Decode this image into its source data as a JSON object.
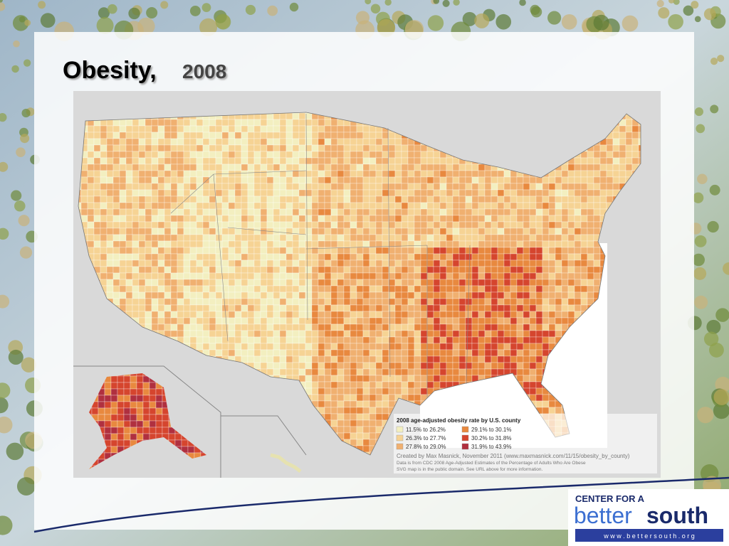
{
  "title": {
    "main": "Obesity,",
    "year": "2008"
  },
  "legend": {
    "title": "2008 age-adjusted obesity rate by U.S. county",
    "items": [
      {
        "label": "11.5% to 26.2%",
        "color": "#f3efc0"
      },
      {
        "label": "26.3% to 27.7%",
        "color": "#f6d394"
      },
      {
        "label": "27.8% to 29.0%",
        "color": "#f0b070"
      },
      {
        "label": "29.1% to 30.1%",
        "color": "#e8893f"
      },
      {
        "label": "30.2% to 31.8%",
        "color": "#d5452e"
      },
      {
        "label": "31.9% to 43.9%",
        "color": "#b0303f"
      }
    ]
  },
  "credits": [
    "Created by Max Masnick, November 2011 (www.maxmasnick.com/11/15/obesity_by_county)",
    "Data is from CDC 2008 Age-Adjusted Estimates of the Percentage of Adults Who Are Obese",
    "SVG map is in the public domain. See URL above for more information."
  ],
  "logo": {
    "line1": "CENTER FOR A",
    "word1": "better",
    "word2": "south",
    "url": "w w w . b e t t e r s o u t h . o r g"
  }
}
